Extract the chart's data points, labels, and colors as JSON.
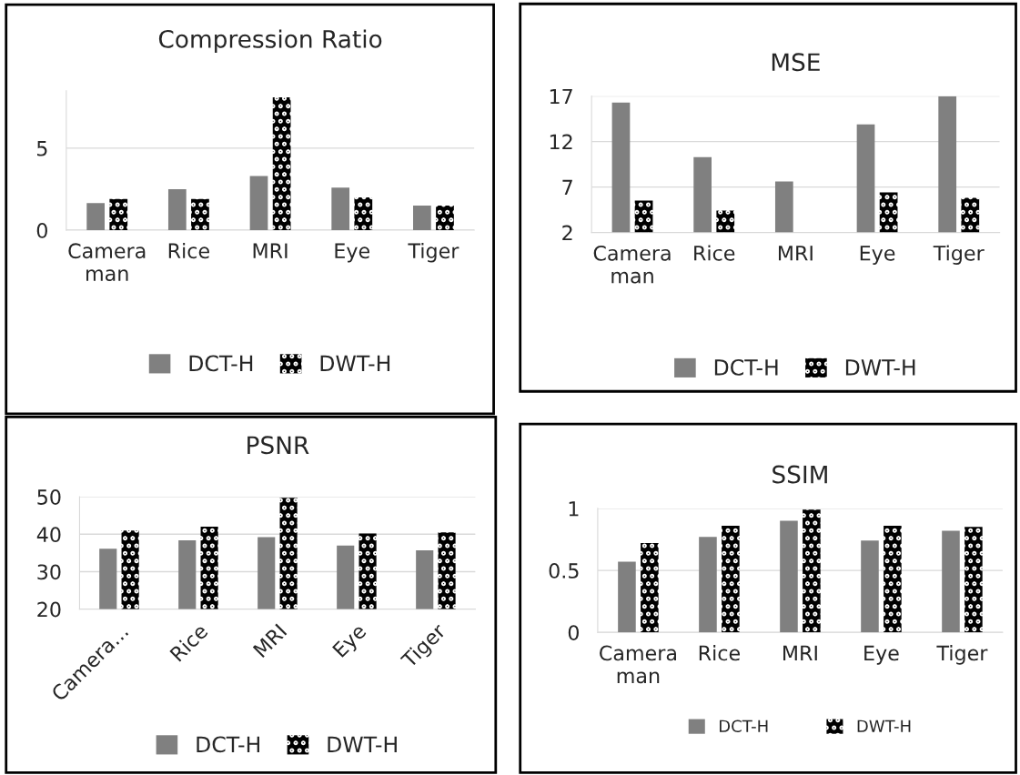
{
  "chart_data": [
    {
      "type": "bar",
      "title": "Compression Ratio",
      "categories": [
        "Camera man",
        "Rice",
        "MRI",
        "Eye",
        "Tiger"
      ],
      "series": [
        {
          "name": "DCT-H",
          "color": "#808080",
          "values": [
            1.65,
            2.5,
            3.3,
            2.6,
            1.5
          ]
        },
        {
          "name": "DWT-H",
          "color": "#000000",
          "values": [
            1.9,
            1.9,
            8.1,
            2.0,
            1.5
          ]
        }
      ],
      "ylim": [
        0,
        8.5
      ],
      "yticks": [
        0,
        5
      ],
      "grid": "y",
      "legend": "bottom"
    },
    {
      "type": "bar",
      "title": "MSE",
      "categories": [
        "Camera man",
        "Rice",
        "MRI",
        "Eye",
        "Tiger"
      ],
      "series": [
        {
          "name": "DCT-H",
          "color": "#808080",
          "values": [
            16.3,
            10.3,
            7.6,
            13.9,
            17
          ]
        },
        {
          "name": "DWT-H",
          "color": "#000000",
          "values": [
            5.5,
            4.4,
            null,
            6.4,
            5.8
          ]
        }
      ],
      "ylim": [
        2,
        17
      ],
      "yticks": [
        2,
        7,
        12,
        17
      ],
      "grid": "y",
      "legend": "bottom"
    },
    {
      "type": "bar",
      "title": "PSNR",
      "categories": [
        "Camera...",
        "Rice",
        "MRI",
        "Eye",
        "Tiger"
      ],
      "series": [
        {
          "name": "DCT-H",
          "color": "#808080",
          "values": [
            36.1,
            38.4,
            39.2,
            37.0,
            35.7
          ]
        },
        {
          "name": "DWT-H",
          "color": "#000000",
          "values": [
            41.0,
            42.0,
            49.7,
            40.2,
            40.5
          ]
        }
      ],
      "ylim": [
        20,
        50
      ],
      "yticks": [
        20,
        30,
        40,
        50
      ],
      "grid": "y",
      "legend": "bottom"
    },
    {
      "type": "bar",
      "title": "SSIM",
      "categories": [
        "Camera man",
        "Rice",
        "MRI",
        "Eye",
        "Tiger"
      ],
      "series": [
        {
          "name": "DCT-H",
          "color": "#808080",
          "values": [
            0.57,
            0.77,
            0.9,
            0.74,
            0.82
          ]
        },
        {
          "name": "DWT-H",
          "color": "#000000",
          "values": [
            0.72,
            0.86,
            0.99,
            0.86,
            0.85
          ]
        }
      ],
      "ylim": [
        0,
        1
      ],
      "yticks": [
        0,
        0.5,
        1
      ],
      "grid": "y",
      "legend": "bottom"
    }
  ]
}
